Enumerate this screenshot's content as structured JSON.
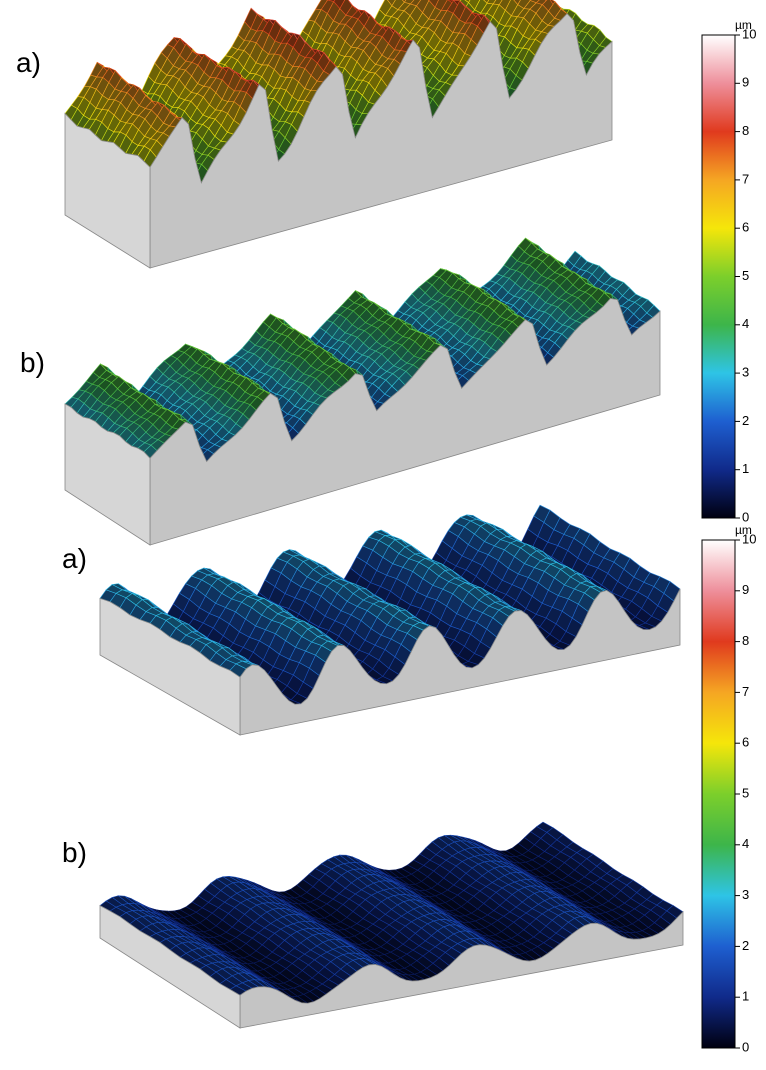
{
  "panels": [
    {
      "label": "a)"
    },
    {
      "label": "b)"
    },
    {
      "label": "a)"
    },
    {
      "label": "b)"
    }
  ],
  "colorbars": [
    {
      "unit": "µm",
      "range": [
        0,
        10
      ],
      "ticks": [
        0,
        1,
        2,
        3,
        4,
        5,
        6,
        7,
        8,
        9,
        10
      ]
    },
    {
      "unit": "µm",
      "range": [
        0,
        10
      ],
      "ticks": [
        0,
        1,
        2,
        3,
        4,
        5,
        6,
        7,
        8,
        9,
        10
      ]
    }
  ]
}
